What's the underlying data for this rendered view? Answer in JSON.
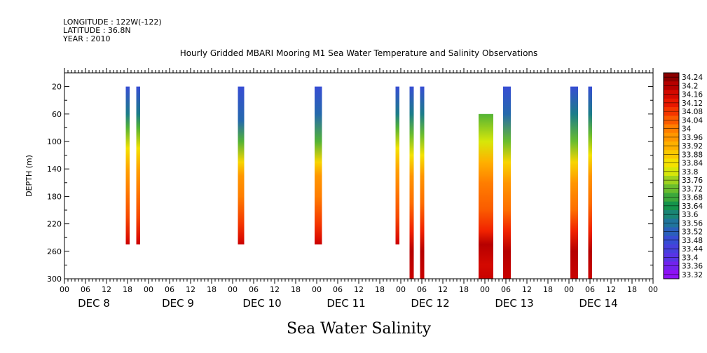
{
  "header": {
    "longitude": "LONGITUDE : 122W(-122)",
    "latitude": "LATITUDE : 36.8N",
    "year": "YEAR : 2010"
  },
  "chart_data": {
    "type": "heatmap",
    "title": "Hourly Gridded MBARI Mooring M1 Sea Water Temperature and Salinity Observations",
    "xlabel": "Sea Water Salinity",
    "ylabel": "DEPTH (m)",
    "x_unit": "hours since 2010-12-08 00:00",
    "xlim": [
      0,
      168
    ],
    "ylim": [
      300,
      0
    ],
    "y_ticks": [
      20,
      60,
      100,
      140,
      180,
      220,
      260,
      300
    ],
    "hour_tick_labels": [
      "00",
      "06",
      "12",
      "18",
      "00",
      "06",
      "12",
      "18",
      "00",
      "06",
      "12",
      "18",
      "00",
      "06",
      "12",
      "18",
      "00",
      "06",
      "12",
      "18",
      "00",
      "06",
      "12",
      "18",
      "00",
      "06",
      "12",
      "18",
      "00"
    ],
    "day_labels": [
      {
        "label": "DEC  8",
        "at_hour": 6
      },
      {
        "label": "DEC  9",
        "at_hour": 30
      },
      {
        "label": "DEC 10",
        "at_hour": 54
      },
      {
        "label": "DEC 11",
        "at_hour": 78
      },
      {
        "label": "DEC 12",
        "at_hour": 102
      },
      {
        "label": "DEC 13",
        "at_hour": 126
      },
      {
        "label": "DEC 14",
        "at_hour": 150
      }
    ],
    "colorbar": {
      "levels": [
        "34.24",
        "34.2",
        "34.16",
        "34.12",
        "34.08",
        "34.04",
        "34",
        "33.96",
        "33.92",
        "33.88",
        "33.84",
        "33.8",
        "33.76",
        "33.72",
        "33.68",
        "33.64",
        "33.6",
        "33.56",
        "33.52",
        "33.48",
        "33.44",
        "33.4",
        "33.36",
        "33.32"
      ],
      "min": 33.3,
      "max": 34.26
    },
    "columns": [
      {
        "x_start": 17.5,
        "x_end": 18.6,
        "depth_top": 20,
        "depth_bottom": 250,
        "profile": [
          [
            20,
            33.5
          ],
          [
            60,
            33.6
          ],
          [
            80,
            33.72
          ],
          [
            110,
            33.86
          ],
          [
            140,
            33.96
          ],
          [
            170,
            34.02
          ],
          [
            210,
            34.08
          ],
          [
            240,
            34.16
          ],
          [
            250,
            34.2
          ]
        ]
      },
      {
        "x_start": 20.5,
        "x_end": 21.6,
        "depth_top": 20,
        "depth_bottom": 250,
        "profile": [
          [
            20,
            33.5
          ],
          [
            60,
            33.6
          ],
          [
            80,
            33.72
          ],
          [
            110,
            33.86
          ],
          [
            140,
            33.96
          ],
          [
            170,
            34.02
          ],
          [
            210,
            34.08
          ],
          [
            240,
            34.16
          ],
          [
            250,
            34.2
          ]
        ]
      },
      {
        "x_start": 49.5,
        "x_end": 51.3,
        "depth_top": 20,
        "depth_bottom": 250,
        "profile": [
          [
            20,
            33.5
          ],
          [
            70,
            33.56
          ],
          [
            100,
            33.72
          ],
          [
            130,
            33.88
          ],
          [
            150,
            33.98
          ],
          [
            180,
            34.02
          ],
          [
            220,
            34.1
          ],
          [
            240,
            34.16
          ],
          [
            250,
            34.2
          ]
        ]
      },
      {
        "x_start": 71.4,
        "x_end": 73.5,
        "depth_top": 20,
        "depth_bottom": 250,
        "profile": [
          [
            20,
            33.5
          ],
          [
            60,
            33.56
          ],
          [
            100,
            33.72
          ],
          [
            130,
            33.88
          ],
          [
            150,
            33.98
          ],
          [
            180,
            34.02
          ],
          [
            220,
            34.1
          ],
          [
            240,
            34.16
          ],
          [
            250,
            34.2
          ]
        ]
      },
      {
        "x_start": 94.5,
        "x_end": 95.6,
        "depth_top": 20,
        "depth_bottom": 250,
        "profile": [
          [
            20,
            33.5
          ],
          [
            60,
            33.6
          ],
          [
            80,
            33.72
          ],
          [
            110,
            33.86
          ],
          [
            140,
            33.96
          ],
          [
            170,
            34.02
          ],
          [
            210,
            34.08
          ],
          [
            240,
            34.16
          ],
          [
            250,
            34.2
          ]
        ]
      },
      {
        "x_start": 98.5,
        "x_end": 99.7,
        "depth_top": 20,
        "depth_bottom": 300,
        "profile": [
          [
            20,
            33.5
          ],
          [
            60,
            33.6
          ],
          [
            90,
            33.74
          ],
          [
            120,
            33.86
          ],
          [
            150,
            33.98
          ],
          [
            190,
            34.04
          ],
          [
            230,
            34.12
          ],
          [
            260,
            34.22
          ],
          [
            300,
            34.2
          ]
        ]
      },
      {
        "x_start": 101.5,
        "x_end": 102.7,
        "depth_top": 20,
        "depth_bottom": 300,
        "profile": [
          [
            20,
            33.5
          ],
          [
            60,
            33.6
          ],
          [
            90,
            33.74
          ],
          [
            120,
            33.86
          ],
          [
            150,
            33.98
          ],
          [
            190,
            34.04
          ],
          [
            230,
            34.12
          ],
          [
            260,
            34.22
          ],
          [
            300,
            34.2
          ]
        ]
      },
      {
        "x_start": 118.2,
        "x_end": 122.4,
        "depth_top": 60,
        "depth_bottom": 300,
        "profile": [
          [
            60,
            33.72
          ],
          [
            100,
            33.82
          ],
          [
            130,
            33.94
          ],
          [
            160,
            34.02
          ],
          [
            200,
            34.06
          ],
          [
            230,
            34.12
          ],
          [
            250,
            34.22
          ],
          [
            280,
            34.18
          ],
          [
            300,
            34.2
          ]
        ]
      },
      {
        "x_start": 125.2,
        "x_end": 127.4,
        "depth_top": 20,
        "depth_bottom": 300,
        "profile": [
          [
            20,
            33.5
          ],
          [
            60,
            33.56
          ],
          [
            100,
            33.74
          ],
          [
            130,
            33.88
          ],
          [
            160,
            33.98
          ],
          [
            200,
            34.04
          ],
          [
            230,
            34.12
          ],
          [
            260,
            34.22
          ],
          [
            300,
            34.2
          ]
        ]
      },
      {
        "x_start": 144.4,
        "x_end": 146.6,
        "depth_top": 20,
        "depth_bottom": 300,
        "profile": [
          [
            20,
            33.5
          ],
          [
            60,
            33.6
          ],
          [
            100,
            33.74
          ],
          [
            130,
            33.88
          ],
          [
            160,
            33.98
          ],
          [
            200,
            34.04
          ],
          [
            230,
            34.12
          ],
          [
            260,
            34.22
          ],
          [
            300,
            34.2
          ]
        ]
      },
      {
        "x_start": 149.5,
        "x_end": 150.6,
        "depth_top": 20,
        "depth_bottom": 300,
        "profile": [
          [
            20,
            33.5
          ],
          [
            60,
            33.6
          ],
          [
            90,
            33.74
          ],
          [
            120,
            33.86
          ],
          [
            150,
            33.98
          ],
          [
            190,
            34.04
          ],
          [
            230,
            34.12
          ],
          [
            260,
            34.22
          ],
          [
            300,
            34.2
          ]
        ]
      }
    ]
  }
}
